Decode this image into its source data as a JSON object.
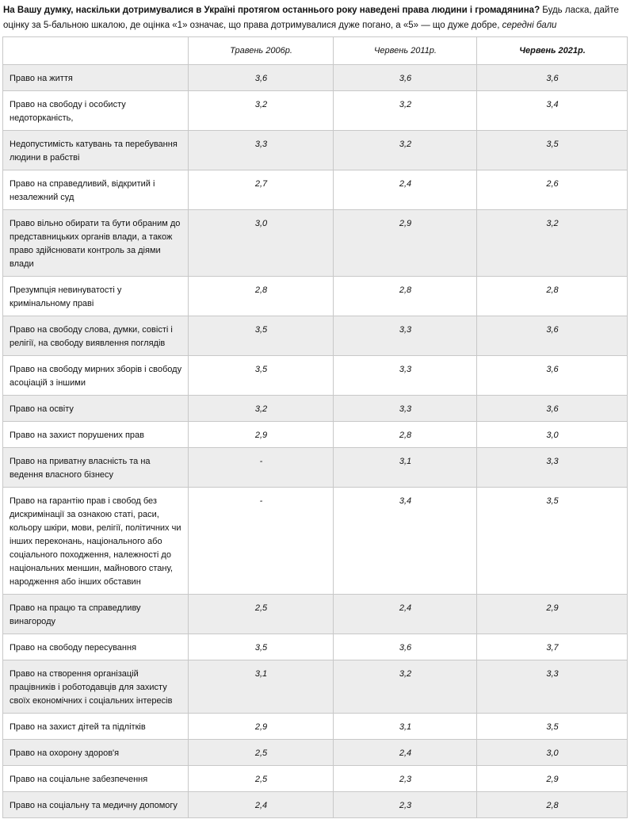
{
  "question": {
    "bold": "На Вашу думку, наскільки дотримувалися в Україні протягом останнього року наведені права людини і громадянина?",
    "normal": " Будь ласка, дайте оцінку за 5-бальною шкалою, де оцінка «1» означає, що права дотримувалися дуже погано, а «5» — що дуже добре, ",
    "italic": "середні бали"
  },
  "table": {
    "headers": [
      "",
      "Травень 2006р.",
      "Червень 2011р.",
      "Червень 2021р."
    ],
    "rows": [
      {
        "label": "Право на життя",
        "values": [
          "3,6",
          "3,6",
          "3,6"
        ]
      },
      {
        "label": "Право на свободу і особисту недоторканість,",
        "values": [
          "3,2",
          "3,2",
          "3,4"
        ]
      },
      {
        "label": "Недопустимість катувань та перебування людини в рабстві",
        "values": [
          "3,3",
          "3,2",
          "3,5"
        ]
      },
      {
        "label": "Право на справедливий, відкритий і незалежний суд",
        "values": [
          "2,7",
          "2,4",
          "2,6"
        ]
      },
      {
        "label": "Право вільно обирати та бути обраним до представницьких органів влади, а також право здійснювати контроль за діями влади",
        "values": [
          "3,0",
          "2,9",
          "3,2"
        ]
      },
      {
        "label": "Презумпція невинуватості у кримінальному праві",
        "values": [
          "2,8",
          "2,8",
          "2,8"
        ]
      },
      {
        "label": "Право на свободу слова, думки, совісті і релігії, на свободу виявлення поглядів",
        "values": [
          "3,5",
          "3,3",
          "3,6"
        ]
      },
      {
        "label": "Право на свободу мирних зборів і свободу асоціацій з іншими",
        "values": [
          "3,5",
          "3,3",
          "3,6"
        ]
      },
      {
        "label": "Право на освіту",
        "values": [
          "3,2",
          "3,3",
          "3,6"
        ]
      },
      {
        "label": "Право на захист порушених прав",
        "values": [
          "2,9",
          "2,8",
          "3,0"
        ]
      },
      {
        "label": "Право на приватну власність та на ведення власного бізнесу",
        "values": [
          "-",
          "3,1",
          "3,3"
        ]
      },
      {
        "label": "Право на гарантію прав і свобод без дискримінації за ознакою статі, раси, кольору шкіри, мови, релігії, політичних чи інших переконань, національного або соціального походження, належності до національних меншин, майнового стану, народження або інших обставин",
        "values": [
          "-",
          "3,4",
          "3,5"
        ]
      },
      {
        "label": "Право на працю та справедливу винагороду",
        "values": [
          "2,5",
          "2,4",
          "2,9"
        ]
      },
      {
        "label": "Право на свободу пересування",
        "values": [
          "3,5",
          "3,6",
          "3,7"
        ]
      },
      {
        "label": "Право на створення організацій працівників і роботодавців для захисту своїх економічних і соціальних інтересів",
        "values": [
          "3,1",
          "3,2",
          "3,3"
        ]
      },
      {
        "label": "Право на захист дітей та підлітків",
        "values": [
          "2,9",
          "3,1",
          "3,5"
        ]
      },
      {
        "label": "Право на охорону здоров'я",
        "values": [
          "2,5",
          "2,4",
          "3,0"
        ]
      },
      {
        "label": "Право на соціальне забезпечення",
        "values": [
          "2,5",
          "2,3",
          "2,9"
        ]
      },
      {
        "label": "Право на соціальну та медичну допомогу",
        "values": [
          "2,4",
          "2,3",
          "2,8"
        ]
      }
    ]
  }
}
